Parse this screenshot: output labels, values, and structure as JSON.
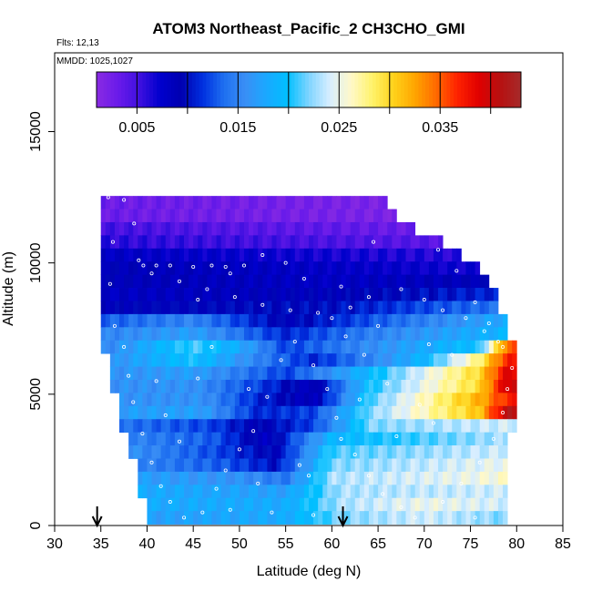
{
  "chart_data": {
    "type": "heatmap",
    "title": "ATOM3 Northeast_Pacific_2 CH3CHO_GMI",
    "notes": [
      "Flts: 12,13",
      "MMDD: 1025,1027"
    ],
    "xlabel": "Latitude (deg N)",
    "ylabel": "Altitude (m)",
    "xlim": [
      30,
      85
    ],
    "ylim": [
      0,
      18000
    ],
    "xticks": [
      30,
      35,
      40,
      45,
      50,
      55,
      60,
      65,
      70,
      75,
      80,
      85
    ],
    "yticks": [
      0,
      5000,
      10000,
      15000
    ],
    "colorbar": {
      "range": [
        0.001,
        0.043
      ],
      "tick_values": [
        0.005,
        0.015,
        0.025,
        0.035
      ],
      "tick_labels": [
        "0.005",
        "0.015",
        "0.025",
        "0.035"
      ],
      "colors": [
        "#8a2be2",
        "#6a1bea",
        "#4010e0",
        "#0000cd",
        "#0000b0",
        "#0030e0",
        "#1e6ff0",
        "#3a8ff5",
        "#1aa8ff",
        "#00bfff",
        "#7fd4ff",
        "#d8eeff",
        "#fff8c8",
        "#fff36b",
        "#ffd21a",
        "#ffa500",
        "#ff6a00",
        "#ff2200",
        "#e00000",
        "#b81010",
        "#a52a2a"
      ]
    },
    "rows": [
      {
        "z": 12300,
        "lat": [
          35,
          66
        ],
        "profile": [
          [
            35,
            0.003
          ],
          [
            66,
            0.002
          ]
        ]
      },
      {
        "z": 11800,
        "lat": [
          35,
          67
        ],
        "profile": [
          [
            35,
            0.003
          ],
          [
            67,
            0.002
          ]
        ]
      },
      {
        "z": 11300,
        "lat": [
          35,
          69
        ],
        "profile": [
          [
            35,
            0.005
          ],
          [
            69,
            0.003
          ]
        ]
      },
      {
        "z": 10800,
        "lat": [
          35,
          72
        ],
        "profile": [
          [
            35,
            0.006
          ],
          [
            72,
            0.004
          ]
        ]
      },
      {
        "z": 10300,
        "lat": [
          35,
          74
        ],
        "profile": [
          [
            35,
            0.008
          ],
          [
            74,
            0.006
          ]
        ]
      },
      {
        "z": 9800,
        "lat": [
          35,
          76
        ],
        "profile": [
          [
            35,
            0.009
          ],
          [
            76,
            0.007
          ]
        ]
      },
      {
        "z": 9300,
        "lat": [
          35,
          77
        ],
        "profile": [
          [
            35,
            0.009
          ],
          [
            60,
            0.008
          ],
          [
            77,
            0.009
          ]
        ]
      },
      {
        "z": 8800,
        "lat": [
          35,
          78
        ],
        "profile": [
          [
            35,
            0.008
          ],
          [
            60,
            0.009
          ],
          [
            78,
            0.011
          ]
        ]
      },
      {
        "z": 8300,
        "lat": [
          35,
          78
        ],
        "profile": [
          [
            35,
            0.009
          ],
          [
            60,
            0.01
          ],
          [
            78,
            0.014
          ]
        ]
      },
      {
        "z": 7800,
        "lat": [
          35,
          79
        ],
        "profile": [
          [
            35,
            0.013
          ],
          [
            45,
            0.015
          ],
          [
            55,
            0.009
          ],
          [
            65,
            0.013
          ],
          [
            79,
            0.018
          ]
        ]
      },
      {
        "z": 7300,
        "lat": [
          35,
          79
        ],
        "profile": [
          [
            35,
            0.015
          ],
          [
            45,
            0.017
          ],
          [
            55,
            0.011
          ],
          [
            65,
            0.015
          ],
          [
            79,
            0.019
          ]
        ]
      },
      {
        "z": 6800,
        "lat": [
          35,
          80
        ],
        "profile": [
          [
            35,
            0.015
          ],
          [
            45,
            0.021
          ],
          [
            50,
            0.018
          ],
          [
            55,
            0.012
          ],
          [
            65,
            0.016
          ],
          [
            76,
            0.02
          ],
          [
            79,
            0.035
          ]
        ]
      },
      {
        "z": 6300,
        "lat": [
          36,
          80
        ],
        "profile": [
          [
            36,
            0.016
          ],
          [
            45,
            0.02
          ],
          [
            52,
            0.015
          ],
          [
            58,
            0.011
          ],
          [
            70,
            0.019
          ],
          [
            76,
            0.028
          ],
          [
            79,
            0.037
          ]
        ]
      },
      {
        "z": 5800,
        "lat": [
          36,
          80
        ],
        "profile": [
          [
            36,
            0.016
          ],
          [
            45,
            0.017
          ],
          [
            55,
            0.012
          ],
          [
            65,
            0.02
          ],
          [
            76,
            0.03
          ],
          [
            79,
            0.039
          ]
        ]
      },
      {
        "z": 5300,
        "lat": [
          36,
          80
        ],
        "profile": [
          [
            36,
            0.016
          ],
          [
            45,
            0.016
          ],
          [
            52,
            0.012
          ],
          [
            58,
            0.008
          ],
          [
            64,
            0.02
          ],
          [
            76,
            0.03
          ],
          [
            79,
            0.04
          ]
        ]
      },
      {
        "z": 4800,
        "lat": [
          37,
          80
        ],
        "profile": [
          [
            37,
            0.016
          ],
          [
            46,
            0.016
          ],
          [
            52,
            0.011
          ],
          [
            58,
            0.008
          ],
          [
            64,
            0.021
          ],
          [
            76,
            0.032
          ],
          [
            79,
            0.037
          ]
        ]
      },
      {
        "z": 4300,
        "lat": [
          37,
          80
        ],
        "profile": [
          [
            37,
            0.017
          ],
          [
            46,
            0.017
          ],
          [
            52,
            0.011
          ],
          [
            58,
            0.012
          ],
          [
            64,
            0.022
          ],
          [
            76,
            0.031
          ],
          [
            79,
            0.041
          ]
        ]
      },
      {
        "z": 3800,
        "lat": [
          37,
          80
        ],
        "profile": [
          [
            37,
            0.014
          ],
          [
            47,
            0.012
          ],
          [
            52,
            0.009
          ],
          [
            58,
            0.012
          ],
          [
            64,
            0.022
          ],
          [
            79,
            0.024
          ]
        ]
      },
      {
        "z": 3300,
        "lat": [
          38,
          79
        ],
        "profile": [
          [
            38,
            0.015
          ],
          [
            47,
            0.013
          ],
          [
            53,
            0.008
          ],
          [
            60,
            0.019
          ],
          [
            79,
            0.023
          ]
        ]
      },
      {
        "z": 2800,
        "lat": [
          38,
          79
        ],
        "profile": [
          [
            38,
            0.016
          ],
          [
            48,
            0.012
          ],
          [
            54,
            0.009
          ],
          [
            60,
            0.021
          ],
          [
            79,
            0.024
          ]
        ]
      },
      {
        "z": 2300,
        "lat": [
          39,
          79
        ],
        "profile": [
          [
            39,
            0.015
          ],
          [
            48,
            0.013
          ],
          [
            54,
            0.01
          ],
          [
            60,
            0.022
          ],
          [
            79,
            0.025
          ]
        ]
      },
      {
        "z": 1800,
        "lat": [
          39,
          79
        ],
        "profile": [
          [
            39,
            0.017
          ],
          [
            50,
            0.016
          ],
          [
            55,
            0.014
          ],
          [
            60,
            0.023
          ],
          [
            75,
            0.025
          ],
          [
            79,
            0.026
          ]
        ]
      },
      {
        "z": 1300,
        "lat": [
          39,
          79
        ],
        "profile": [
          [
            39,
            0.018
          ],
          [
            55,
            0.017
          ],
          [
            61,
            0.023
          ],
          [
            79,
            0.024
          ]
        ]
      },
      {
        "z": 800,
        "lat": [
          40,
          79
        ],
        "profile": [
          [
            40,
            0.018
          ],
          [
            55,
            0.018
          ],
          [
            61,
            0.023
          ],
          [
            70,
            0.025
          ],
          [
            79,
            0.024
          ]
        ]
      },
      {
        "z": 300,
        "lat": [
          40,
          79
        ],
        "profile": [
          [
            40,
            0.017
          ],
          [
            55,
            0.018
          ],
          [
            61,
            0.022
          ],
          [
            70,
            0.024
          ],
          [
            79,
            0.022
          ]
        ]
      }
    ],
    "flight_track": [
      [
        35.8,
        12500
      ],
      [
        37.5,
        12400
      ],
      [
        38.6,
        11500
      ],
      [
        39.1,
        10100
      ],
      [
        39.6,
        9900
      ],
      [
        41.0,
        9900
      ],
      [
        42.5,
        9900
      ],
      [
        45.0,
        9850
      ],
      [
        47.0,
        9900
      ],
      [
        48.5,
        9850
      ],
      [
        49.0,
        9600
      ],
      [
        50.5,
        9900
      ],
      [
        52.5,
        10300
      ],
      [
        55.0,
        10000
      ],
      [
        57.0,
        9400
      ],
      [
        60.0,
        7900
      ],
      [
        61.5,
        7200
      ],
      [
        63.5,
        6500
      ],
      [
        65.0,
        7600
      ],
      [
        66.5,
        12200
      ],
      [
        68.0,
        11900
      ],
      [
        69.5,
        11200
      ],
      [
        71.5,
        10500
      ],
      [
        73.5,
        9700
      ],
      [
        75.5,
        8500
      ],
      [
        77.0,
        7700
      ],
      [
        78.0,
        7000
      ],
      [
        36.5,
        7600
      ],
      [
        37.5,
        6800
      ],
      [
        38.0,
        5700
      ],
      [
        38.5,
        4700
      ],
      [
        39.5,
        3500
      ],
      [
        40.5,
        2400
      ],
      [
        41.5,
        1500
      ],
      [
        42.5,
        900
      ],
      [
        44.0,
        300
      ],
      [
        46.0,
        500
      ],
      [
        47.5,
        1400
      ],
      [
        48.5,
        2100
      ],
      [
        50.0,
        2900
      ],
      [
        51.5,
        3600
      ],
      [
        53.0,
        4900
      ],
      [
        54.5,
        6300
      ],
      [
        56.0,
        7000
      ],
      [
        58.0,
        6100
      ],
      [
        59.5,
        5200
      ],
      [
        60.5,
        4100
      ],
      [
        61.0,
        3300
      ],
      [
        62.5,
        2700
      ],
      [
        64.0,
        1900
      ],
      [
        65.5,
        1200
      ],
      [
        67.5,
        700
      ],
      [
        69.0,
        300
      ],
      [
        72.0,
        900
      ],
      [
        74.0,
        1600
      ],
      [
        76.0,
        2400
      ],
      [
        77.5,
        3300
      ],
      [
        78.5,
        4300
      ],
      [
        79.0,
        5200
      ],
      [
        79.5,
        6000
      ],
      [
        78.5,
        6800
      ],
      [
        76.5,
        7400
      ],
      [
        74.5,
        7900
      ],
      [
        72.0,
        8200
      ],
      [
        70.0,
        8600
      ],
      [
        67.5,
        9000
      ],
      [
        64.0,
        8700
      ],
      [
        62.0,
        8300
      ],
      [
        58.5,
        8100
      ],
      [
        55.5,
        8200
      ],
      [
        52.5,
        8400
      ],
      [
        49.5,
        8700
      ],
      [
        46.5,
        9000
      ],
      [
        43.5,
        9300
      ],
      [
        40.5,
        9600
      ],
      [
        41.0,
        5500
      ],
      [
        42.0,
        4200
      ],
      [
        43.5,
        3200
      ],
      [
        45.5,
        5600
      ],
      [
        47.0,
        6800
      ],
      [
        51.0,
        5200
      ],
      [
        52.0,
        1600
      ],
      [
        56.5,
        2300
      ],
      [
        57.5,
        1900
      ],
      [
        63.0,
        4800
      ],
      [
        66.0,
        5400
      ],
      [
        69.5,
        4600
      ],
      [
        71.0,
        3900
      ],
      [
        73.0,
        6500
      ],
      [
        75.5,
        300
      ],
      [
        58.0,
        400
      ],
      [
        53.5,
        500
      ],
      [
        49.0,
        600
      ],
      [
        36.0,
        9200
      ],
      [
        36.3,
        10800
      ],
      [
        45.5,
        8600
      ],
      [
        61.0,
        9100
      ],
      [
        64.5,
        10800
      ],
      [
        70.5,
        6900
      ],
      [
        67.0,
        3400
      ]
    ],
    "arrows": [
      34.6,
      61.2
    ]
  }
}
